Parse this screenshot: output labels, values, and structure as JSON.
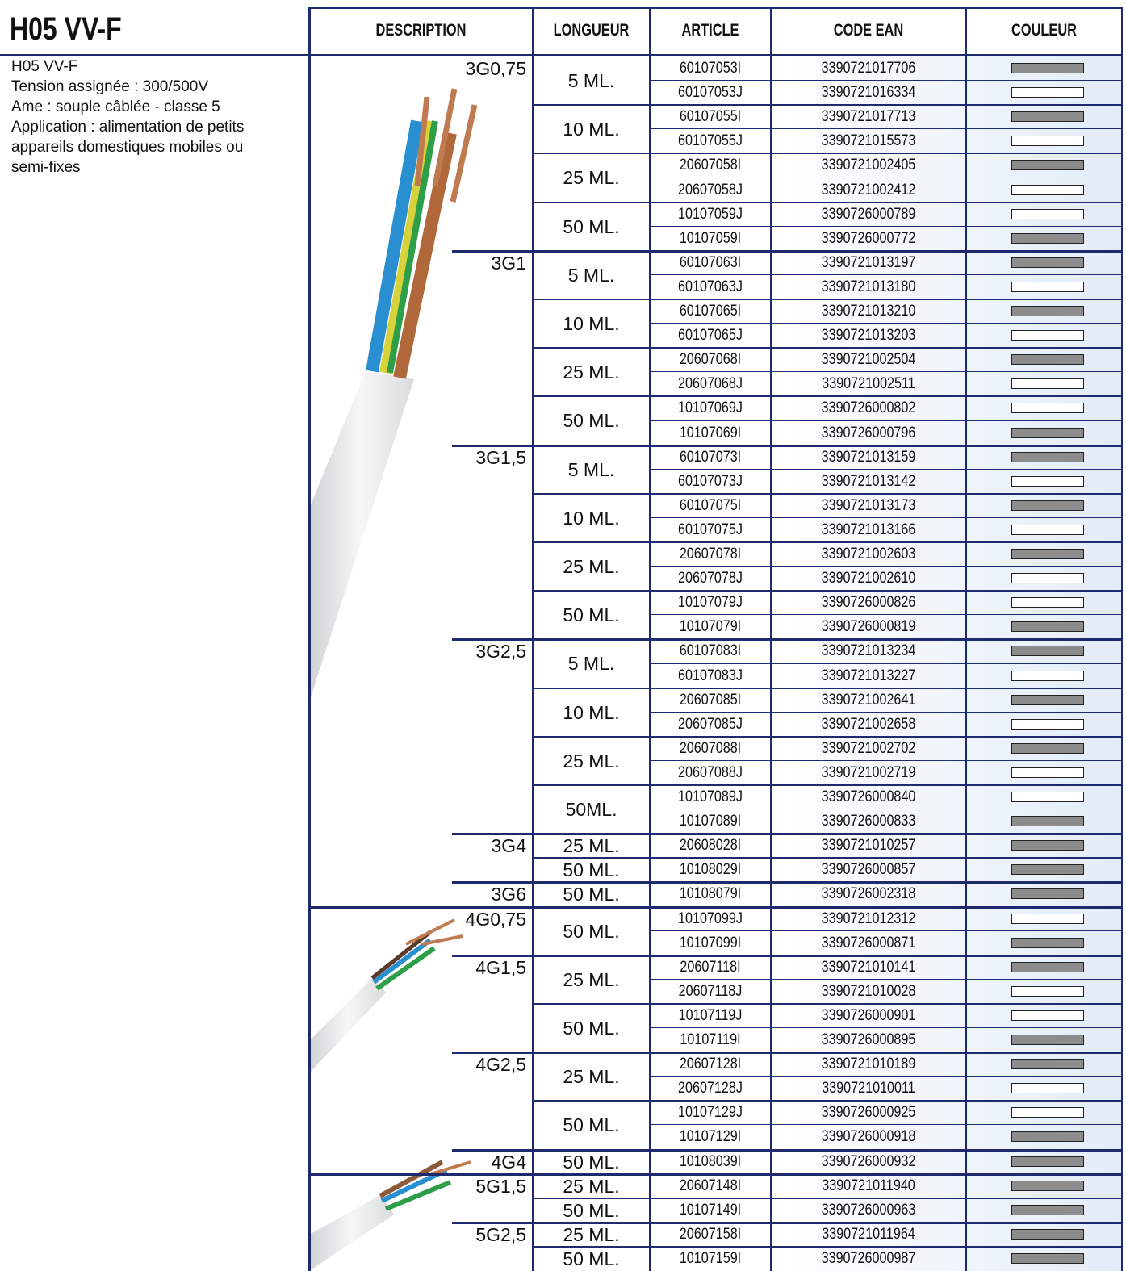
{
  "header": {
    "title": "H05 VV-F",
    "columns": [
      "DESCRIPTION",
      "LONGUEUR",
      "ARTICLE",
      "CODE EAN",
      "COULEUR"
    ]
  },
  "description": [
    "H05 VV-F",
    "Tension assignée : 300/500V",
    "Ame : souple câblée - classe 5",
    "Application : alimentation de petits",
    "appareils domestiques mobiles ou",
    "semi-fixes"
  ],
  "sections": [
    {
      "label": "3G0,75",
      "lengths": [
        {
          "label": "5 ML.",
          "rows": [
            [
              "60107053I",
              "3390721017706",
              "#8c8c8c"
            ],
            [
              "60107053J",
              "3390721016334",
              "#ffffff"
            ]
          ]
        },
        {
          "label": "10 ML.",
          "rows": [
            [
              "60107055I",
              "3390721017713",
              "#8c8c8c"
            ],
            [
              "60107055J",
              "3390721015573",
              "#ffffff"
            ]
          ]
        },
        {
          "label": "25 ML.",
          "rows": [
            [
              "20607058I",
              "3390721002405",
              "#8c8c8c"
            ],
            [
              "20607058J",
              "3390721002412",
              "#ffffff"
            ]
          ]
        },
        {
          "label": "50 ML.",
          "rows": [
            [
              "10107059J",
              "3390726000789",
              "#ffffff"
            ],
            [
              "10107059I",
              "3390726000772",
              "#8c8c8c"
            ]
          ]
        }
      ]
    },
    {
      "label": "3G1",
      "lengths": [
        {
          "label": "5 ML.",
          "rows": [
            [
              "60107063I",
              "3390721013197",
              "#8c8c8c"
            ],
            [
              "60107063J",
              "3390721013180",
              "#ffffff"
            ]
          ]
        },
        {
          "label": "10 ML.",
          "rows": [
            [
              "60107065I",
              "3390721013210",
              "#8c8c8c"
            ],
            [
              "60107065J",
              "3390721013203",
              "#ffffff"
            ]
          ]
        },
        {
          "label": "25 ML.",
          "rows": [
            [
              "20607068I",
              "3390721002504",
              "#8c8c8c"
            ],
            [
              "20607068J",
              "3390721002511",
              "#ffffff"
            ]
          ]
        },
        {
          "label": "50 ML.",
          "rows": [
            [
              "10107069J",
              "3390726000802",
              "#ffffff"
            ],
            [
              "10107069I",
              "3390726000796",
              "#8c8c8c"
            ]
          ]
        }
      ]
    },
    {
      "label": "3G1,5",
      "lengths": [
        {
          "label": "5 ML.",
          "rows": [
            [
              "60107073I",
              "3390721013159",
              "#8c8c8c"
            ],
            [
              "60107073J",
              "3390721013142",
              "#ffffff"
            ]
          ]
        },
        {
          "label": "10 ML.",
          "rows": [
            [
              "60107075I",
              "3390721013173",
              "#8c8c8c"
            ],
            [
              "60107075J",
              "3390721013166",
              "#ffffff"
            ]
          ]
        },
        {
          "label": "25 ML.",
          "rows": [
            [
              "20607078I",
              "3390721002603",
              "#8c8c8c"
            ],
            [
              "20607078J",
              "3390721002610",
              "#ffffff"
            ]
          ]
        },
        {
          "label": "50 ML.",
          "rows": [
            [
              "10107079J",
              "3390726000826",
              "#ffffff"
            ],
            [
              "10107079I",
              "3390726000819",
              "#8c8c8c"
            ]
          ]
        }
      ]
    },
    {
      "label": "3G2,5",
      "lengths": [
        {
          "label": "5 ML.",
          "rows": [
            [
              "60107083I",
              "3390721013234",
              "#8c8c8c"
            ],
            [
              "60107083J",
              "3390721013227",
              "#ffffff"
            ]
          ]
        },
        {
          "label": "10 ML.",
          "rows": [
            [
              "20607085I",
              "3390721002641",
              "#8c8c8c"
            ],
            [
              "20607085J",
              "3390721002658",
              "#ffffff"
            ]
          ]
        },
        {
          "label": "25 ML.",
          "rows": [
            [
              "20607088I",
              "3390721002702",
              "#8c8c8c"
            ],
            [
              "20607088J",
              "3390721002719",
              "#ffffff"
            ]
          ]
        },
        {
          "label": "50ML.",
          "rows": [
            [
              "10107089J",
              "3390726000840",
              "#ffffff"
            ],
            [
              "10107089I",
              "3390726000833",
              "#8c8c8c"
            ]
          ]
        }
      ]
    },
    {
      "label": "3G4",
      "lengths": [
        {
          "label": "25 ML.",
          "rows": [
            [
              "20608028I",
              "3390721010257",
              "#8c8c8c"
            ]
          ]
        },
        {
          "label": "50 ML.",
          "rows": [
            [
              "10108029I",
              "3390726000857",
              "#8c8c8c"
            ]
          ]
        }
      ]
    },
    {
      "label": "3G6",
      "lengths": [
        {
          "label": "50 ML.",
          "rows": [
            [
              "10108079I",
              "3390726002318",
              "#8c8c8c"
            ]
          ]
        }
      ]
    },
    {
      "label": "4G0,75",
      "lengths": [
        {
          "label": "50 ML.",
          "rows": [
            [
              "10107099J",
              "3390721012312",
              "#ffffff"
            ],
            [
              "10107099I",
              "3390726000871",
              "#8c8c8c"
            ]
          ]
        }
      ]
    },
    {
      "label": "4G1,5",
      "lengths": [
        {
          "label": "25 ML.",
          "rows": [
            [
              "20607118I",
              "3390721010141",
              "#8c8c8c"
            ],
            [
              "20607118J",
              "3390721010028",
              "#ffffff"
            ]
          ]
        },
        {
          "label": "50 ML.",
          "rows": [
            [
              "10107119J",
              "3390726000901",
              "#ffffff"
            ],
            [
              "10107119I",
              "3390726000895",
              "#8c8c8c"
            ]
          ]
        }
      ]
    },
    {
      "label": "4G2,5",
      "lengths": [
        {
          "label": "25 ML.",
          "rows": [
            [
              "20607128I",
              "3390721010189",
              "#8c8c8c"
            ],
            [
              "20607128J",
              "3390721010011",
              "#ffffff"
            ]
          ]
        },
        {
          "label": "50 ML.",
          "rows": [
            [
              "10107129J",
              "3390726000925",
              "#ffffff"
            ],
            [
              "10107129I",
              "3390726000918",
              "#8c8c8c"
            ]
          ]
        }
      ]
    },
    {
      "label": "4G4",
      "lengths": [
        {
          "label": "50 ML.",
          "rows": [
            [
              "10108039I",
              "3390726000932",
              "#8c8c8c"
            ]
          ]
        }
      ]
    },
    {
      "label": "5G1,5",
      "lengths": [
        {
          "label": "25 ML.",
          "rows": [
            [
              "20607148I",
              "3390721011940",
              "#8c8c8c"
            ]
          ]
        },
        {
          "label": "50 ML.",
          "rows": [
            [
              "10107149I",
              "3390726000963",
              "#8c8c8c"
            ]
          ]
        }
      ]
    },
    {
      "label": "5G2,5",
      "lengths": [
        {
          "label": "25 ML.",
          "rows": [
            [
              "20607158I",
              "3390721011964",
              "#8c8c8c"
            ]
          ]
        },
        {
          "label": "50 ML.",
          "rows": [
            [
              "10107159I",
              "3390726000987",
              "#8c8c8c"
            ]
          ]
        }
      ]
    }
  ]
}
